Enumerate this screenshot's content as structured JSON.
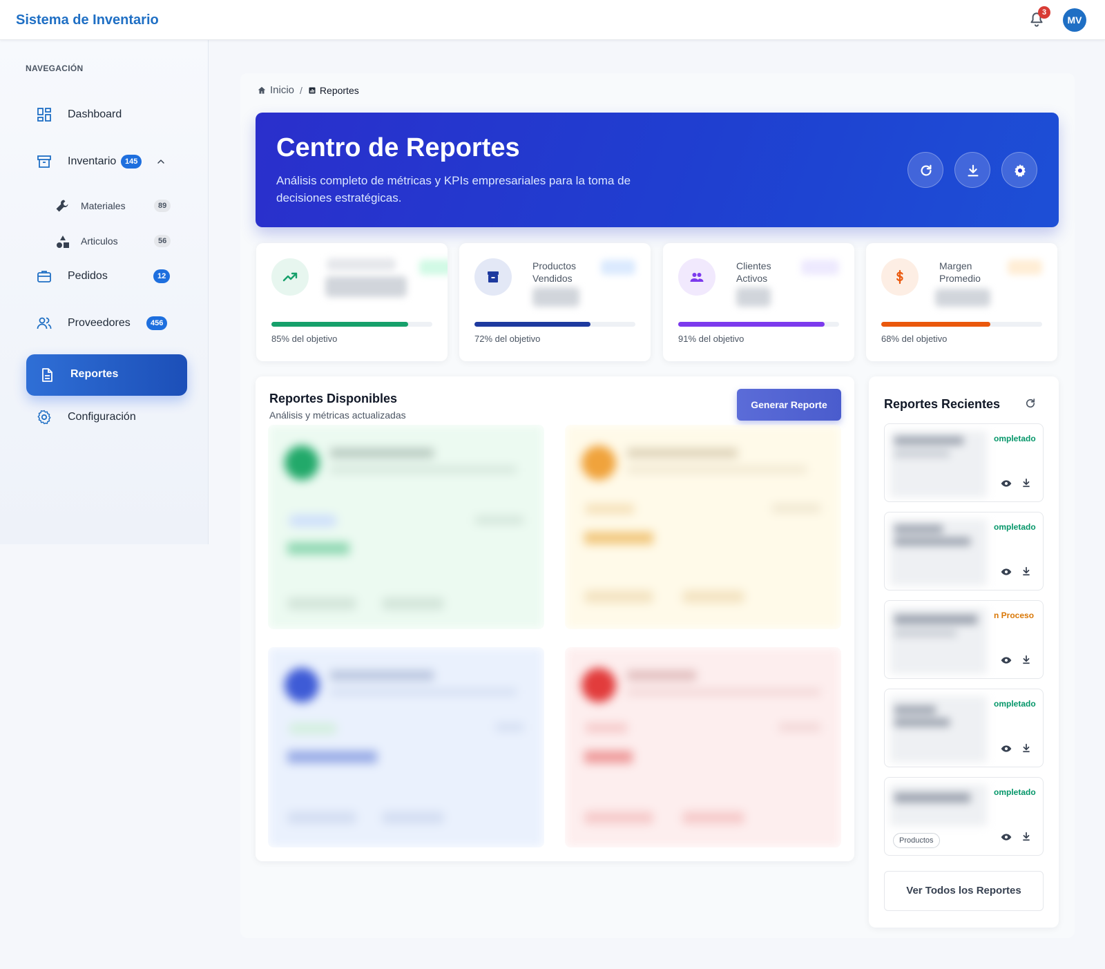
{
  "header": {
    "title": "Sistema de Inventario",
    "notification_count": "3",
    "avatar_initials": "MV"
  },
  "sidebar": {
    "heading": "NAVEGACIÓN",
    "items": [
      {
        "label": "Dashboard",
        "icon": "dashboard-icon"
      },
      {
        "label": "Inventario",
        "count": "145",
        "icon": "archive-icon",
        "expanded": true
      },
      {
        "label": "Materiales",
        "count": "89",
        "icon": "wrench-icon",
        "sub": true
      },
      {
        "label": "Articulos",
        "count": "56",
        "icon": "shapes-icon",
        "sub": true
      },
      {
        "label": "Pedidos",
        "count": "12",
        "icon": "briefcase-icon"
      },
      {
        "label": "Proveedores",
        "count": "456",
        "icon": "users-icon"
      },
      {
        "label": "Reportes",
        "icon": "document-icon",
        "active": true
      },
      {
        "label": "Configuración",
        "icon": "gear-icon"
      }
    ]
  },
  "breadcrumb": {
    "home": "Inicio",
    "separator": "/",
    "current": "Reportes"
  },
  "hero": {
    "title": "Centro de Reportes",
    "subtitle": "Análisis completo de métricas y KPIs empresariales para la toma de decisiones estratégicas."
  },
  "kpis": [
    {
      "label": "",
      "note": "85% del objetivo",
      "progress": 0.85,
      "color": "#16a06b",
      "icon": "trend-up-icon"
    },
    {
      "label": "Productos Vendidos",
      "note": "72% del objetivo",
      "progress": 0.72,
      "color": "#1e3a9f",
      "icon": "archive-icon"
    },
    {
      "label": "Clientes Activos",
      "note": "91% del objetivo",
      "progress": 0.91,
      "color": "#7c3aed",
      "icon": "users-icon"
    },
    {
      "label": "Margen Promedio",
      "note": "68% del objetivo",
      "progress": 0.68,
      "color": "#ea580c",
      "icon": "dollar-icon"
    }
  ],
  "reports_panel": {
    "title": "Reportes Disponibles",
    "subtitle": "Análisis y métricas actualizadas",
    "generate_button": "Generar Reporte"
  },
  "recent_panel": {
    "title": "Reportes Recientes",
    "items": [
      {
        "status": "ompletado",
        "status_color": "#059669"
      },
      {
        "status": "ompletado",
        "status_color": "#059669"
      },
      {
        "status": "n Proceso",
        "status_color": "#d97706"
      },
      {
        "status": "ompletado",
        "status_color": "#059669"
      },
      {
        "status": "ompletado",
        "status_color": "#059669",
        "tag": "Productos"
      }
    ],
    "view_all": "Ver Todos los Reportes"
  },
  "colors": {
    "brand": "#1f6fc4",
    "hero_start": "#2a2fcc",
    "hero_end": "#1d4fd6",
    "active_nav": "#2f6fd6"
  }
}
